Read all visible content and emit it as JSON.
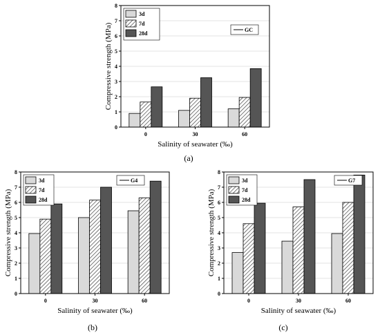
{
  "figure": {
    "captions": [
      "(a)",
      "(b)",
      "(c)"
    ]
  },
  "chart_data": [
    {
      "type": "bar",
      "panel_caption": "(a)",
      "inset_label": "GC",
      "categories": [
        "0",
        "30",
        "60"
      ],
      "series": [
        {
          "name": "3d",
          "values": [
            0.9,
            1.1,
            1.2
          ],
          "fill": "#d9d9d9"
        },
        {
          "name": "7d",
          "values": [
            1.65,
            1.9,
            1.95
          ],
          "fill": "hatch"
        },
        {
          "name": "28d",
          "values": [
            2.65,
            3.25,
            3.85
          ],
          "fill": "#555555"
        }
      ],
      "xlabel": "Salinity of seawater (‰)",
      "ylabel": "Compressive strength (MPa)",
      "ylim": [
        0,
        8
      ],
      "yticks": [
        "0",
        "1",
        "2",
        "3",
        "4",
        "5",
        "6",
        "7",
        "8"
      ],
      "grid": true,
      "legend_position": "top-left"
    },
    {
      "type": "bar",
      "panel_caption": "(b)",
      "inset_label": "G4",
      "categories": [
        "0",
        "30",
        "60"
      ],
      "series": [
        {
          "name": "3d",
          "values": [
            3.95,
            5.0,
            5.45
          ],
          "fill": "#d9d9d9"
        },
        {
          "name": "7d",
          "values": [
            4.9,
            6.15,
            6.3
          ],
          "fill": "hatch"
        },
        {
          "name": "28d",
          "values": [
            5.9,
            7.0,
            7.4
          ],
          "fill": "#555555"
        }
      ],
      "xlabel": "Salinity of seawater (‰)",
      "ylabel": "Compressive strength (MPa)",
      "ylim": [
        0,
        8
      ],
      "yticks": [
        "0",
        "1",
        "2",
        "3",
        "4",
        "5",
        "6",
        "7",
        "8"
      ],
      "grid": true,
      "legend_position": "top-left"
    },
    {
      "type": "bar",
      "panel_caption": "(c)",
      "inset_label": "G7",
      "categories": [
        "0",
        "30",
        "60"
      ],
      "series": [
        {
          "name": "3d",
          "values": [
            2.7,
            3.45,
            3.95
          ],
          "fill": "#d9d9d9"
        },
        {
          "name": "7d",
          "values": [
            4.6,
            5.7,
            6.0
          ],
          "fill": "hatch"
        },
        {
          "name": "28d",
          "values": [
            5.95,
            7.5,
            7.8
          ],
          "fill": "#555555"
        }
      ],
      "xlabel": "Salinity of seawater (‰)",
      "ylabel": "Compressive strength (MPa)",
      "ylim": [
        0,
        8
      ],
      "yticks": [
        "0",
        "1",
        "2",
        "3",
        "4",
        "5",
        "6",
        "7",
        "8"
      ],
      "grid": true,
      "legend_position": "top-left"
    }
  ]
}
